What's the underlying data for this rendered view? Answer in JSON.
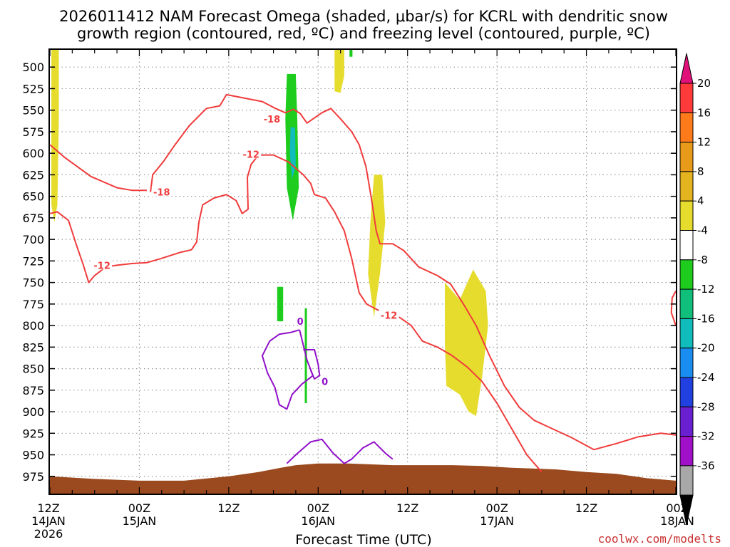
{
  "chart_data": {
    "type": "time-height",
    "title_line1": "2026011412 NAM Forecast Omega (shaded, μbar/s) for KCRL with dendritic snow",
    "title_line2": "growth region (contoured, red, ºC) and freezing level (contoured, purple, ºC)",
    "xlabel": "Forecast Time (UTC)",
    "credit": "coolwx.com/modelts",
    "x_range_hours": [
      0,
      84
    ],
    "y_range_hpa": [
      480,
      995
    ],
    "y_ticks": [
      500,
      525,
      550,
      575,
      600,
      625,
      650,
      675,
      700,
      725,
      750,
      775,
      800,
      825,
      850,
      875,
      900,
      925,
      950,
      975
    ],
    "x_ticks": [
      {
        "hour": 0,
        "l1": "12Z",
        "l2": "14JAN",
        "l3": "2026"
      },
      {
        "hour": 12,
        "l1": "00Z",
        "l2": "15JAN",
        "l3": ""
      },
      {
        "hour": 24,
        "l1": "12Z",
        "l2": "",
        "l3": ""
      },
      {
        "hour": 36,
        "l1": "00Z",
        "l2": "16JAN",
        "l3": ""
      },
      {
        "hour": 48,
        "l1": "12Z",
        "l2": "",
        "l3": ""
      },
      {
        "hour": 60,
        "l1": "00Z",
        "l2": "17JAN",
        "l3": ""
      },
      {
        "hour": 72,
        "l1": "12Z",
        "l2": "",
        "l3": ""
      },
      {
        "hour": 84,
        "l1": "00Z",
        "l2": "18JAN",
        "l3": ""
      }
    ],
    "colorbar": {
      "labels": [
        "20",
        "16",
        "12",
        "8",
        "4",
        "-4",
        "-8",
        "-12",
        "-16",
        "-20",
        "-24",
        "-28",
        "-32",
        "-36"
      ],
      "colors": [
        "#ff3a3a",
        "#ff7a1a",
        "#e89a1a",
        "#e3b41f",
        "#e6dc2e",
        "#ffffff",
        "#1ecc1e",
        "#10c07a",
        "#10bcbc",
        "#1a8ef0",
        "#2040e0",
        "#6a20d0",
        "#a010c8",
        "#a8a8a8"
      ],
      "top_arrow_color": "#e0107a",
      "bottom_arrow_color": "#000000"
    },
    "omega_regions": [
      {
        "value": 5,
        "color": "#e6dc2e",
        "pts": [
          [
            0.2,
            480
          ],
          [
            1.2,
            480
          ],
          [
            1.2,
            560
          ],
          [
            1.0,
            660
          ],
          [
            0.6,
            680
          ],
          [
            0.2,
            660
          ]
        ]
      },
      {
        "value": 5,
        "color": "#e6dc2e",
        "pts": [
          [
            38.2,
            480
          ],
          [
            39.5,
            480
          ],
          [
            39.5,
            510
          ],
          [
            39.0,
            530
          ],
          [
            38.2,
            528
          ]
        ]
      },
      {
        "value": -5,
        "color": "#1ecc1e",
        "pts": [
          [
            40.2,
            480
          ],
          [
            40.6,
            480
          ],
          [
            40.6,
            488
          ],
          [
            40.2,
            488
          ]
        ]
      },
      {
        "value": -6,
        "color": "#1ecc1e",
        "pts": [
          [
            31.8,
            508
          ],
          [
            33.0,
            508
          ],
          [
            33.2,
            560
          ],
          [
            33.4,
            640
          ],
          [
            32.6,
            678
          ],
          [
            31.8,
            640
          ],
          [
            31.6,
            560
          ]
        ]
      },
      {
        "value": -14,
        "color": "#10bcbc",
        "pts": [
          [
            32.3,
            570
          ],
          [
            32.9,
            570
          ],
          [
            33.0,
            615
          ],
          [
            32.5,
            630
          ],
          [
            32.2,
            600
          ]
        ]
      },
      {
        "value": -5,
        "color": "#1ecc1e",
        "pts": [
          [
            30.5,
            755
          ],
          [
            31.3,
            755
          ],
          [
            31.3,
            795
          ],
          [
            30.5,
            795
          ]
        ]
      },
      {
        "value": -5,
        "color": "#1ecc1e",
        "pts": [
          [
            34.2,
            780
          ],
          [
            34.5,
            780
          ],
          [
            34.5,
            890
          ],
          [
            34.2,
            890
          ]
        ]
      },
      {
        "value": 5,
        "color": "#e6dc2e",
        "pts": [
          [
            43.5,
            625
          ],
          [
            44.6,
            625
          ],
          [
            45.0,
            680
          ],
          [
            44.3,
            740
          ],
          [
            43.5,
            790
          ],
          [
            42.7,
            740
          ],
          [
            43.0,
            680
          ]
        ]
      },
      {
        "value": 5,
        "color": "#e6dc2e",
        "pts": [
          [
            53.0,
            750
          ],
          [
            55.0,
            770
          ],
          [
            56.8,
            735
          ],
          [
            58.5,
            760
          ],
          [
            58.8,
            800
          ],
          [
            58.0,
            860
          ],
          [
            57.2,
            905
          ],
          [
            56.2,
            900
          ],
          [
            55.0,
            880
          ],
          [
            53.2,
            870
          ],
          [
            53.0,
            820
          ]
        ]
      }
    ],
    "dgz_contours": [
      {
        "label": "-12",
        "pts": [
          [
            0,
            590
          ],
          [
            2.0,
            605
          ],
          [
            5.5,
            627
          ],
          [
            9.0,
            640
          ],
          [
            11.0,
            643
          ],
          [
            13.0,
            643
          ]
        ]
      },
      {
        "label": "-18",
        "pts": [
          [
            13.5,
            645
          ],
          [
            13.8,
            625
          ],
          [
            15.2,
            610
          ],
          [
            16.8,
            590
          ],
          [
            18.7,
            568
          ],
          [
            21.0,
            548
          ],
          [
            22.8,
            545
          ],
          [
            23.7,
            532
          ],
          [
            25.5,
            535
          ],
          [
            28.5,
            540
          ],
          [
            30.3,
            548
          ],
          [
            31.6,
            553
          ],
          [
            32.7,
            549
          ],
          [
            33.6,
            554
          ],
          [
            34.5,
            565
          ],
          [
            36.5,
            553
          ],
          [
            37.7,
            548
          ],
          [
            39.0,
            560
          ],
          [
            40.5,
            575
          ],
          [
            41.5,
            590
          ],
          [
            42.4,
            615
          ],
          [
            43.1,
            650
          ],
          [
            43.8,
            690
          ],
          [
            44.3,
            705
          ],
          [
            46.0,
            705
          ],
          [
            47.5,
            713
          ],
          [
            49.5,
            732
          ],
          [
            52.0,
            742
          ],
          [
            53.8,
            752
          ],
          [
            55.5,
            775
          ],
          [
            57.2,
            800
          ],
          [
            59.0,
            835
          ],
          [
            61.0,
            870
          ],
          [
            63.0,
            895
          ],
          [
            65.0,
            910
          ],
          [
            67.0,
            918
          ],
          [
            70.0,
            930
          ],
          [
            73.0,
            944
          ],
          [
            76.0,
            937
          ],
          [
            79.0,
            929
          ],
          [
            82.0,
            925
          ],
          [
            84.0,
            927
          ]
        ]
      },
      {
        "label": "-12",
        "pts": [
          [
            0,
            670
          ],
          [
            1.0,
            668
          ],
          [
            2.5,
            678
          ],
          [
            3.5,
            705
          ],
          [
            4.5,
            730
          ],
          [
            5.2,
            750
          ],
          [
            6.0,
            742
          ],
          [
            7.5,
            732
          ],
          [
            9.0,
            730
          ],
          [
            11.0,
            728
          ],
          [
            13.0,
            727
          ],
          [
            15.0,
            722
          ],
          [
            17.5,
            715
          ],
          [
            19.0,
            712
          ],
          [
            19.7,
            703
          ],
          [
            20.0,
            680
          ],
          [
            20.5,
            660
          ],
          [
            22.0,
            652
          ],
          [
            23.7,
            648
          ],
          [
            25.0,
            655
          ],
          [
            25.8,
            670
          ],
          [
            26.6,
            665
          ],
          [
            26.5,
            628
          ],
          [
            27.0,
            613
          ],
          [
            28.0,
            602
          ],
          [
            30.0,
            602
          ],
          [
            32.0,
            610
          ],
          [
            34.0,
            625
          ],
          [
            35.0,
            635
          ],
          [
            35.5,
            648
          ],
          [
            37.0,
            652
          ],
          [
            38.2,
            668
          ],
          [
            39.5,
            690
          ],
          [
            40.5,
            722
          ],
          [
            41.5,
            762
          ],
          [
            42.5,
            775
          ],
          [
            44.0,
            782
          ],
          [
            45.5,
            785
          ],
          [
            47.0,
            791
          ],
          [
            48.5,
            800
          ],
          [
            50.0,
            818
          ],
          [
            52.0,
            825
          ],
          [
            54.0,
            835
          ],
          [
            56.0,
            848
          ],
          [
            58.0,
            865
          ],
          [
            60.0,
            890
          ],
          [
            62.0,
            920
          ],
          [
            64.0,
            950
          ],
          [
            66.0,
            970
          ]
        ]
      },
      {
        "label": "",
        "pts": [
          [
            84,
            760
          ],
          [
            83.5,
            768
          ],
          [
            83.4,
            785
          ],
          [
            84,
            800
          ]
        ]
      }
    ],
    "contour_labels": [
      {
        "text": "-18",
        "hour": 15.0,
        "hpa": 645
      },
      {
        "text": "-18",
        "hour": 29.8,
        "hpa": 560
      },
      {
        "text": "-12",
        "hour": 27.0,
        "hpa": 601
      },
      {
        "text": "-12",
        "hour": 7.0,
        "hpa": 730
      },
      {
        "text": "-12",
        "hour": 45.5,
        "hpa": 788
      }
    ],
    "freezing_contours": [
      {
        "label": "0",
        "pts": [
          [
            33.5,
            805
          ],
          [
            32.3,
            808
          ],
          [
            30.8,
            810
          ],
          [
            29.5,
            818
          ],
          [
            28.5,
            835
          ],
          [
            29.2,
            855
          ],
          [
            30.2,
            872
          ],
          [
            30.8,
            892
          ],
          [
            31.8,
            897
          ],
          [
            32.5,
            880
          ],
          [
            33.8,
            868
          ],
          [
            35.3,
            858
          ],
          [
            34.5,
            840
          ],
          [
            33.5,
            805
          ]
        ]
      },
      {
        "label": "",
        "pts": [
          [
            34.0,
            828
          ],
          [
            35.5,
            828
          ],
          [
            36.0,
            845
          ],
          [
            36.2,
            858
          ],
          [
            35.5,
            862
          ],
          [
            35.0,
            852
          ]
        ]
      },
      {
        "label": "",
        "pts": [
          [
            31.8,
            960
          ],
          [
            33.0,
            950
          ],
          [
            35.0,
            935
          ],
          [
            36.5,
            932
          ],
          [
            38.0,
            948
          ],
          [
            39.5,
            960
          ],
          [
            40.5,
            955
          ],
          [
            42.0,
            942
          ],
          [
            43.5,
            935
          ],
          [
            45.0,
            948
          ],
          [
            46.0,
            955
          ]
        ]
      }
    ],
    "freezing_labels": [
      {
        "text": "0",
        "hour": 33.6,
        "hpa": 795
      },
      {
        "text": "0",
        "hour": 36.9,
        "hpa": 865
      }
    ],
    "terrain_hpa": [
      [
        0,
        975
      ],
      [
        6,
        978
      ],
      [
        12,
        980
      ],
      [
        18,
        980
      ],
      [
        24,
        975
      ],
      [
        28,
        970
      ],
      [
        31,
        965
      ],
      [
        33,
        962
      ],
      [
        36,
        960
      ],
      [
        40,
        960
      ],
      [
        46,
        962
      ],
      [
        54,
        962
      ],
      [
        58,
        963
      ],
      [
        62,
        965
      ],
      [
        68,
        967
      ],
      [
        72,
        970
      ],
      [
        76,
        972
      ],
      [
        80,
        977
      ],
      [
        84,
        980
      ]
    ],
    "colors": {
      "dgz": "#f03c3c",
      "freezing": "#9010c8",
      "terrain": "#9a4a1e",
      "grid": "#9a9a9a"
    }
  }
}
